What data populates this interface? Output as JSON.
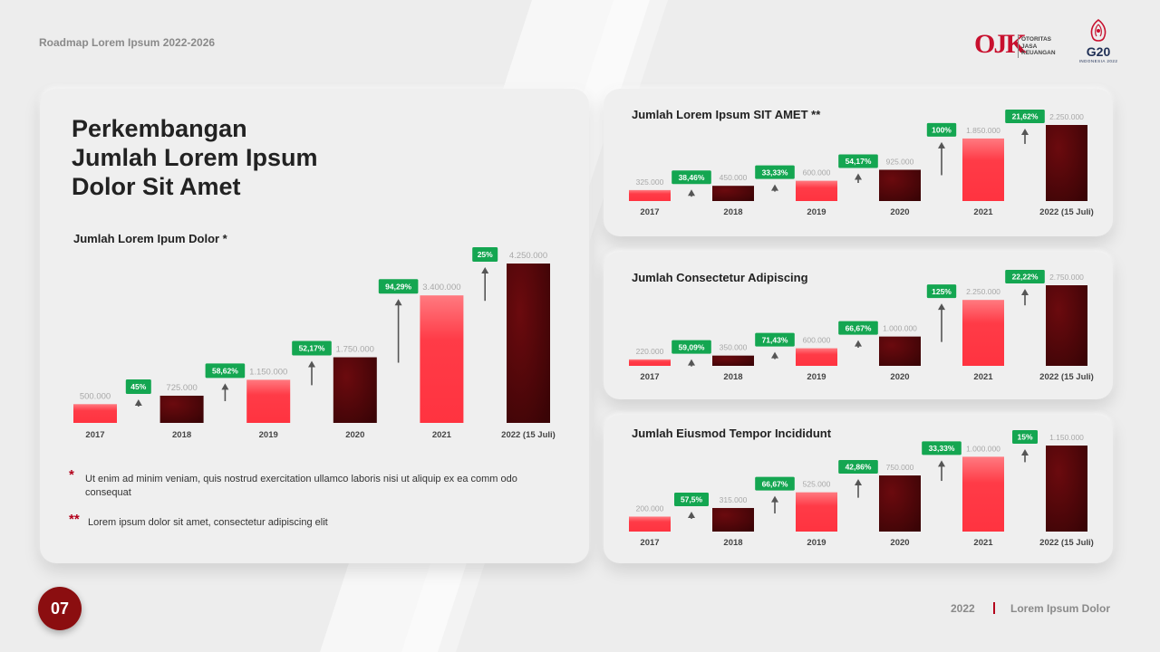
{
  "header": {
    "subtitle": "Roadmap Lorem Ipsum 2022-2026"
  },
  "logos": {
    "ojk_letters": "OJK",
    "ojk_text": [
      "OTORITAS",
      "JASA",
      "KEUANGAN"
    ],
    "g20_text": "G20",
    "g20_sub": "INDONESIA 2022"
  },
  "main": {
    "title_lines": [
      "Perkembangan",
      "Jumlah Lorem Ipsum",
      "Dolor Sit Amet"
    ]
  },
  "notes": [
    {
      "star": "*",
      "text": "Ut enim ad minim veniam, quis nostrud exercitation ullamco laboris nisi ut aliquip ex ea comm odo consequat"
    },
    {
      "star": "**",
      "text": "Lorem ipsum dolor sit amet, consectetur adipiscing elit"
    }
  ],
  "footer": {
    "page_number": "07",
    "year": "2022",
    "label": "Lorem Ipsum Dolor"
  },
  "colors": {
    "red_bar": "#ff3b47",
    "dark_bar": "#3a0406",
    "badge_green": "#14a651",
    "page_circle": "#8b0e10"
  },
  "chart_data": [
    {
      "type": "bar",
      "title": "Jumlah Lorem Ipum Dolor *",
      "categories": [
        "2017",
        "2018",
        "2019",
        "2020",
        "2021",
        "2022 (15 Juli)"
      ],
      "values": [
        500000,
        725000,
        1150000,
        1750000,
        3400000,
        4250000
      ],
      "value_labels": [
        "500.000",
        "725.000",
        "1.150.000",
        "1.750.000",
        "3.400.000",
        "4.250.000"
      ],
      "growth_labels": [
        "45%",
        "58,62%",
        "52,17%",
        "94,29%",
        "25%"
      ],
      "ylim": [
        0,
        4250000
      ]
    },
    {
      "type": "bar",
      "title": "Jumlah Lorem Ipsum SIT AMET **",
      "categories": [
        "2017",
        "2018",
        "2019",
        "2020",
        "2021",
        "2022 (15 Juli)"
      ],
      "values": [
        325000,
        450000,
        600000,
        925000,
        1850000,
        2250000
      ],
      "value_labels": [
        "325.000",
        "450.000",
        "600.000",
        "925.000",
        "1.850.000",
        "2.250.000"
      ],
      "growth_labels": [
        "38,46%",
        "33,33%",
        "54,17%",
        "100%",
        "21,62%"
      ],
      "ylim": [
        0,
        2250000
      ]
    },
    {
      "type": "bar",
      "title": "Jumlah Consectetur Adipiscing",
      "categories": [
        "2017",
        "2018",
        "2019",
        "2020",
        "2021",
        "2022 (15 Juli)"
      ],
      "values": [
        220000,
        350000,
        600000,
        1000000,
        2250000,
        2750000
      ],
      "value_labels": [
        "220.000",
        "350.000",
        "600.000",
        "1.000.000",
        "2.250.000",
        "2.750.000"
      ],
      "growth_labels": [
        "59,09%",
        "71,43%",
        "66,67%",
        "125%",
        "22,22%"
      ],
      "ylim": [
        0,
        2750000
      ]
    },
    {
      "type": "bar",
      "title": "Jumlah Eiusmod Tempor Incididunt",
      "categories": [
        "2017",
        "2018",
        "2019",
        "2020",
        "2021",
        "2022 (15 Juli)"
      ],
      "values": [
        200000,
        315000,
        525000,
        750000,
        1000000,
        1150000
      ],
      "value_labels": [
        "200.000",
        "315.000",
        "525.000",
        "750.000",
        "1.000.000",
        "1.150.000"
      ],
      "growth_labels": [
        "57,5%",
        "66,67%",
        "42,86%",
        "33,33%",
        "15%"
      ],
      "ylim": [
        0,
        1150000
      ]
    }
  ]
}
